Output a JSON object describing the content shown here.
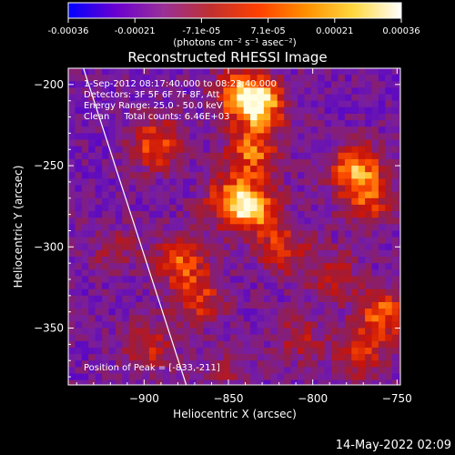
{
  "colorbar": {
    "ticks": [
      "-0.00036",
      "-0.00021",
      "-7.1e-05",
      "7.1e-05",
      "0.00021",
      "0.00036"
    ],
    "unit_label": "(photons cm⁻² s⁻¹ asec⁻²)",
    "colors": [
      "#0000ff",
      "#6a00d0",
      "#9a3098",
      "#c03030",
      "#ff4000",
      "#ff9000",
      "#ffd840",
      "#ffffff"
    ]
  },
  "chart_data": {
    "type": "heatmap",
    "title": "Reconstructed RHESSI Image",
    "xlabel": "Heliocentric X (arcsec)",
    "ylabel": "Heliocentric Y (arcsec)",
    "xlim": [
      -945,
      -748
    ],
    "ylim": [
      -385,
      -190
    ],
    "xticks": [
      -900,
      -850,
      -800,
      -750
    ],
    "yticks": [
      -200,
      -250,
      -300,
      -350
    ],
    "value_range": [
      -0.00036,
      0.00036
    ],
    "annotations": [
      "1-Sep-2012 08:17:40.000 to 08:23:40.000",
      "Detectors: 3F 5F 6F 7F 8F, Att",
      "Energy Range: 25.0 - 50.0 keV",
      "Clean     Total counts: 6.46E+03"
    ],
    "peak_label": "Position of Peak = [-833,-211]",
    "peak": [
      -833,
      -211
    ],
    "limb_line": {
      "x": [
        -936,
        -875
      ],
      "y": [
        -190,
        -385
      ]
    },
    "sources": [
      {
        "x": -845,
        "y": -203,
        "value": 0.00033
      },
      {
        "x": -833,
        "y": -211,
        "value": 0.00036
      },
      {
        "x": -838,
        "y": -240,
        "value": 0.0003
      },
      {
        "x": -850,
        "y": -270,
        "value": 0.00034
      },
      {
        "x": -835,
        "y": -275,
        "value": 0.0003
      },
      {
        "x": -820,
        "y": -300,
        "value": 0.00022
      },
      {
        "x": -790,
        "y": -315,
        "value": 0.00018
      },
      {
        "x": -776,
        "y": -250,
        "value": 0.00034
      },
      {
        "x": -770,
        "y": -270,
        "value": 0.00024
      },
      {
        "x": -760,
        "y": -340,
        "value": 0.0003
      },
      {
        "x": -775,
        "y": -365,
        "value": 0.00024
      },
      {
        "x": -895,
        "y": -235,
        "value": 0.0003
      },
      {
        "x": -880,
        "y": -305,
        "value": 0.00028
      },
      {
        "x": -870,
        "y": -330,
        "value": 0.00024
      },
      {
        "x": -900,
        "y": -360,
        "value": 0.0002
      },
      {
        "x": -920,
        "y": -300,
        "value": 0.00012
      },
      {
        "x": -810,
        "y": -355,
        "value": 0.00016
      },
      {
        "x": -855,
        "y": -375,
        "value": 0.00012
      }
    ]
  },
  "footer": {
    "timestamp": "14-May-2022 02:09"
  }
}
